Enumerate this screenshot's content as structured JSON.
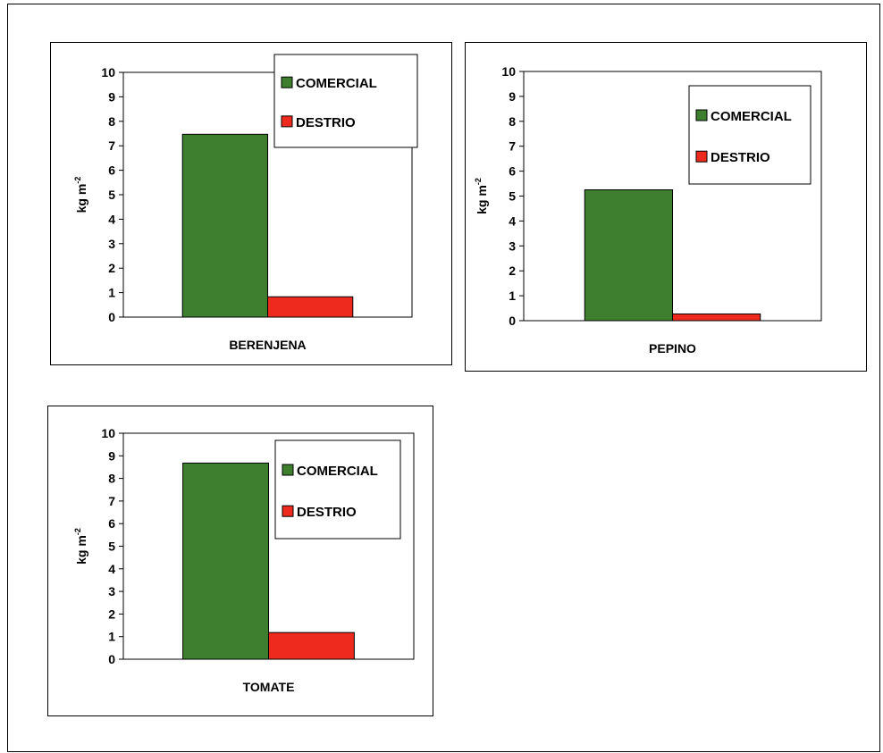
{
  "chart_data": [
    {
      "type": "bar",
      "categories": [
        "BERENJENA"
      ],
      "series": [
        {
          "name": "COMERCIAL",
          "values": [
            7.47
          ]
        },
        {
          "name": "DESTRIO",
          "values": [
            0.83
          ]
        }
      ],
      "ylabel": "kg m",
      "ylabel_sup": "-2",
      "ylim": [
        0,
        10
      ],
      "yticks": [
        "0",
        "1",
        "2",
        "3",
        "4",
        "5",
        "6",
        "7",
        "8",
        "9",
        "10"
      ],
      "grid": false,
      "legend_position": "top-right",
      "colors": [
        "#3d7f2e",
        "#ee2a1e"
      ]
    },
    {
      "type": "bar",
      "categories": [
        "PEPINO"
      ],
      "series": [
        {
          "name": "COMERCIAL",
          "values": [
            5.25
          ]
        },
        {
          "name": "DESTRIO",
          "values": [
            0.27
          ]
        }
      ],
      "ylabel": "kg m",
      "ylabel_sup": "-2",
      "ylim": [
        0,
        10
      ],
      "yticks": [
        "0",
        "1",
        "2",
        "3",
        "4",
        "5",
        "6",
        "7",
        "8",
        "9",
        "10"
      ],
      "grid": false,
      "legend_position": "top-right",
      "colors": [
        "#3d7f2e",
        "#ee2a1e"
      ]
    },
    {
      "type": "bar",
      "categories": [
        "TOMATE"
      ],
      "series": [
        {
          "name": "COMERCIAL",
          "values": [
            8.68
          ]
        },
        {
          "name": "DESTRIO",
          "values": [
            1.18
          ]
        }
      ],
      "ylabel": "kg m",
      "ylabel_sup": "-2",
      "ylim": [
        0,
        10
      ],
      "yticks": [
        "0",
        "1",
        "2",
        "3",
        "4",
        "5",
        "6",
        "7",
        "8",
        "9",
        "10"
      ],
      "grid": false,
      "legend_position": "top-right",
      "colors": [
        "#3d7f2e",
        "#ee2a1e"
      ]
    }
  ]
}
